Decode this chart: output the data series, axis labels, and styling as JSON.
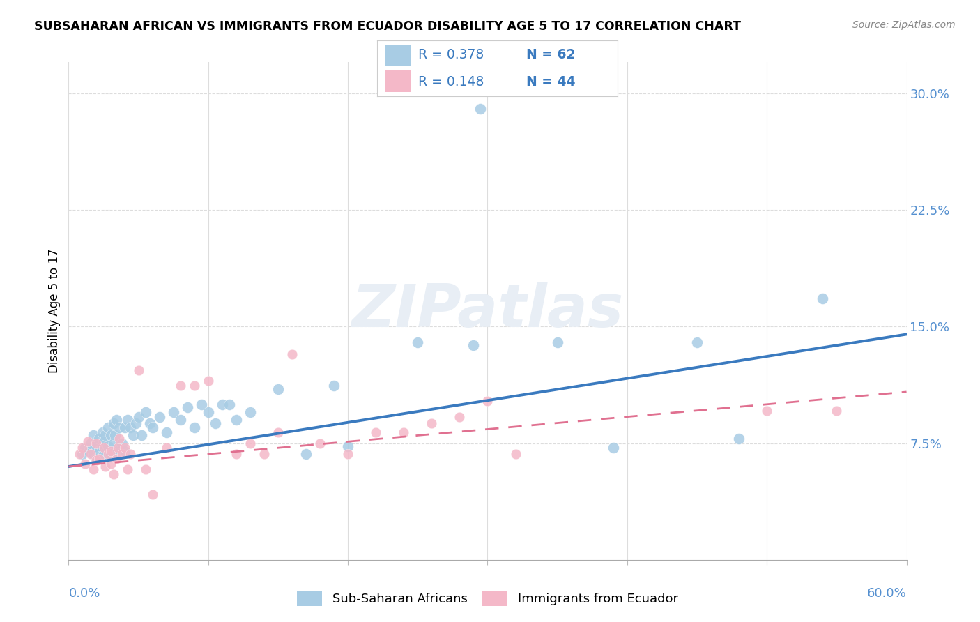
{
  "title": "SUBSAHARAN AFRICAN VS IMMIGRANTS FROM ECUADOR DISABILITY AGE 5 TO 17 CORRELATION CHART",
  "source": "Source: ZipAtlas.com",
  "ylabel": "Disability Age 5 to 17",
  "xlim": [
    0.0,
    0.6
  ],
  "ylim": [
    0.0,
    0.32
  ],
  "blue_color": "#a8cce4",
  "pink_color": "#f4b8c8",
  "blue_line_color": "#3a7abf",
  "pink_line_color": "#e07090",
  "ytick_color": "#5590d0",
  "xtick_color": "#5590d0",
  "r_blue": 0.378,
  "n_blue": 62,
  "r_pink": 0.148,
  "n_pink": 44,
  "legend_sub_label": "Sub-Saharan Africans",
  "legend_eco_label": "Immigrants from Ecuador",
  "watermark_text": "ZIPatlas",
  "blue_x": [
    0.01,
    0.012,
    0.015,
    0.016,
    0.018,
    0.018,
    0.02,
    0.02,
    0.022,
    0.022,
    0.024,
    0.024,
    0.025,
    0.025,
    0.026,
    0.028,
    0.028,
    0.03,
    0.03,
    0.032,
    0.032,
    0.033,
    0.034,
    0.035,
    0.036,
    0.038,
    0.04,
    0.04,
    0.042,
    0.044,
    0.046,
    0.048,
    0.05,
    0.052,
    0.055,
    0.058,
    0.06,
    0.065,
    0.07,
    0.075,
    0.08,
    0.085,
    0.09,
    0.095,
    0.1,
    0.105,
    0.11,
    0.115,
    0.12,
    0.13,
    0.15,
    0.17,
    0.19,
    0.2,
    0.25,
    0.29,
    0.35,
    0.39,
    0.45,
    0.48,
    0.54,
    0.295
  ],
  "blue_y": [
    0.068,
    0.072,
    0.07,
    0.075,
    0.068,
    0.08,
    0.065,
    0.073,
    0.07,
    0.078,
    0.072,
    0.082,
    0.068,
    0.076,
    0.08,
    0.073,
    0.085,
    0.068,
    0.08,
    0.075,
    0.088,
    0.08,
    0.09,
    0.07,
    0.085,
    0.075,
    0.07,
    0.085,
    0.09,
    0.085,
    0.08,
    0.088,
    0.092,
    0.08,
    0.095,
    0.088,
    0.085,
    0.092,
    0.082,
    0.095,
    0.09,
    0.098,
    0.085,
    0.1,
    0.095,
    0.088,
    0.1,
    0.1,
    0.09,
    0.095,
    0.11,
    0.068,
    0.112,
    0.073,
    0.14,
    0.138,
    0.14,
    0.072,
    0.14,
    0.078,
    0.168,
    0.29
  ],
  "pink_x": [
    0.008,
    0.01,
    0.012,
    0.014,
    0.016,
    0.018,
    0.02,
    0.02,
    0.022,
    0.025,
    0.026,
    0.028,
    0.03,
    0.03,
    0.032,
    0.034,
    0.035,
    0.036,
    0.038,
    0.04,
    0.042,
    0.044,
    0.05,
    0.055,
    0.06,
    0.07,
    0.08,
    0.09,
    0.1,
    0.12,
    0.13,
    0.14,
    0.15,
    0.16,
    0.18,
    0.2,
    0.22,
    0.24,
    0.26,
    0.28,
    0.3,
    0.32,
    0.5,
    0.55
  ],
  "pink_y": [
    0.068,
    0.072,
    0.062,
    0.076,
    0.068,
    0.058,
    0.064,
    0.075,
    0.065,
    0.072,
    0.06,
    0.068,
    0.07,
    0.062,
    0.055,
    0.065,
    0.072,
    0.078,
    0.068,
    0.072,
    0.058,
    0.068,
    0.122,
    0.058,
    0.042,
    0.072,
    0.112,
    0.112,
    0.115,
    0.068,
    0.075,
    0.068,
    0.082,
    0.132,
    0.075,
    0.068,
    0.082,
    0.082,
    0.088,
    0.092,
    0.102,
    0.068,
    0.096,
    0.096
  ],
  "blue_line_y0": 0.06,
  "blue_line_y1": 0.145,
  "pink_line_y0": 0.06,
  "pink_line_y1": 0.108
}
